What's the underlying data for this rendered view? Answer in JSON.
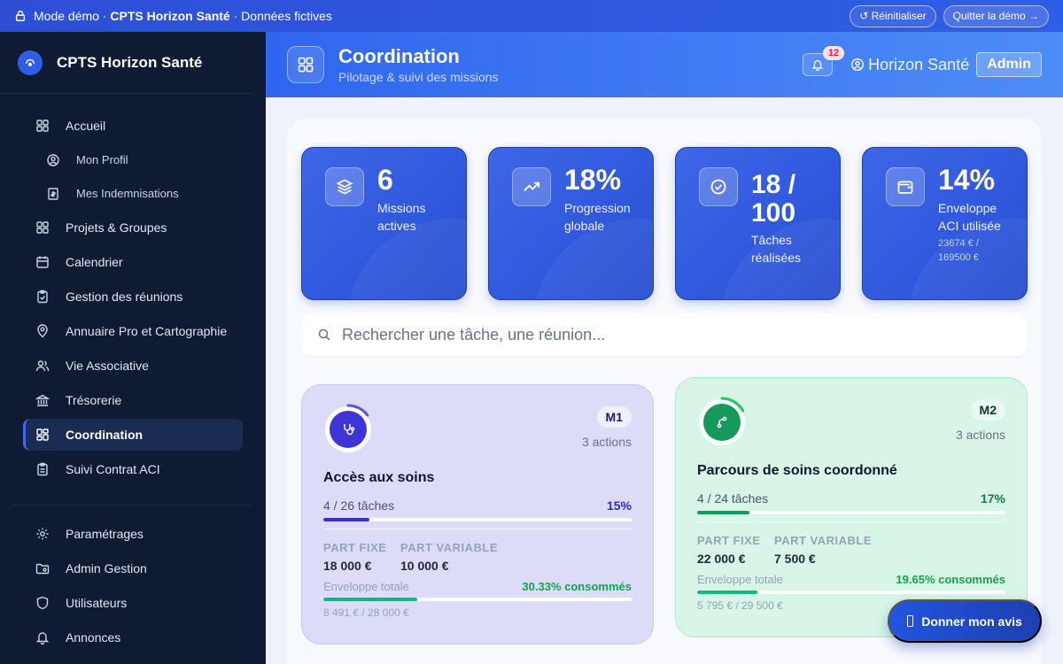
{
  "banner": {
    "prefix": "Mode démo · ",
    "org": "CPTS Horizon Santé",
    "suffix": " · Données fictives",
    "reset_label": "↺ Réinitialiser",
    "quit_label": "Quitter la démo →"
  },
  "sidebar": {
    "brand": "CPTS Horizon Santé",
    "items": [
      {
        "label": "Accueil",
        "icon": "grid-icon"
      },
      {
        "label": "Mon Profil",
        "icon": "user-circle-icon"
      },
      {
        "label": "Mes Indemnisations",
        "icon": "receipt-icon"
      },
      {
        "label": "Projets & Groupes",
        "icon": "grid-icon"
      },
      {
        "label": "Calendrier",
        "icon": "calendar-icon"
      },
      {
        "label": "Gestion des réunions",
        "icon": "clipboard-check-icon"
      },
      {
        "label": "Annuaire Pro et Cartographie",
        "icon": "map-pin-icon"
      },
      {
        "label": "Vie Associative",
        "icon": "users-icon"
      },
      {
        "label": "Trésorerie",
        "icon": "bank-icon"
      },
      {
        "label": "Coordination",
        "icon": "dashboard-icon"
      },
      {
        "label": "Suivi Contrat ACI",
        "icon": "clipboard-icon"
      }
    ],
    "bottom_items": [
      {
        "label": "Paramétrages",
        "icon": "gear-icon"
      },
      {
        "label": "Admin Gestion",
        "icon": "folder-gear-icon"
      },
      {
        "label": "Utilisateurs",
        "icon": "shield-icon"
      },
      {
        "label": "Annonces",
        "icon": "bell-icon"
      }
    ]
  },
  "header": {
    "title": "Coordination",
    "subtitle": "Pilotage & suivi des missions",
    "notif_count": "12",
    "org": "Horizon Santé",
    "role": "Admin"
  },
  "stats": [
    {
      "value": "6",
      "label": "Missions actives",
      "sub": "",
      "icon": "layers-icon"
    },
    {
      "value": "18%",
      "label": "Progression globale",
      "sub": "",
      "icon": "trending-up-icon"
    },
    {
      "value": "18 / 100",
      "label": "Tâches réalisées",
      "sub": "",
      "icon": "check-circle-icon"
    },
    {
      "value": "14%",
      "label": "Enveloppe ACI utilisée",
      "sub": "23674 € / 169500 €",
      "icon": "wallet-icon"
    }
  ],
  "search": {
    "placeholder": "Rechercher une tâche, une réunion..."
  },
  "missions": [
    {
      "code": "M1",
      "actions": "3 actions",
      "title": "Accès aux soins",
      "tasks": "4 / 26 tâches",
      "progress_pct": "15%",
      "progress": 0.15,
      "fixed_label": "PART FIXE",
      "fixed_value": "18 000 €",
      "variable_label": "PART VARIABLE",
      "variable_value": "10 000 €",
      "envelope_label": "Enveloppe totale",
      "envelope_pct": "30.33% consommés",
      "envelope": 0.3033,
      "envelope_amount": "8 491 € / 28 000 €",
      "icon": "stethoscope-icon"
    },
    {
      "code": "M2",
      "actions": "3 actions",
      "title": "Parcours de soins coordonné",
      "tasks": "4 / 24 tâches",
      "progress_pct": "17%",
      "progress": 0.17,
      "fixed_label": "PART FIXE",
      "fixed_value": "22 000 €",
      "variable_label": "PART VARIABLE",
      "variable_value": "7 500 €",
      "envelope_label": "Enveloppe totale",
      "envelope_pct": "19.65% consommés",
      "envelope": 0.1965,
      "envelope_amount": "5 795 € / 29 500 €",
      "icon": "route-icon"
    }
  ],
  "feedback_label": "Donner mon avis"
}
